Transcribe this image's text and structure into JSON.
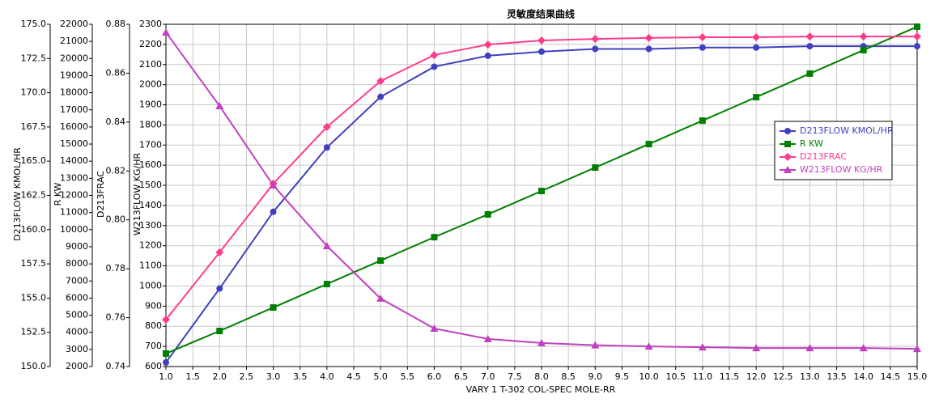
{
  "chart_data": {
    "type": "line",
    "title": "灵敏度结果曲线",
    "xlabel": "VARY   1 T-302 COL-SPEC MOLE-RR",
    "ylabel": "D213FLOW KMOL/HR",
    "y2label": "R KW",
    "y3label": "D213FRAC",
    "y4label": "W213FLOW KG/HR",
    "x": [
      1,
      2,
      3,
      4,
      5,
      6,
      7,
      8,
      9,
      10,
      11,
      12,
      13,
      14,
      15
    ],
    "xlim": [
      1,
      15
    ],
    "xticks": [
      {
        "value": 1,
        "label": "1.0"
      },
      1.5,
      {
        "value": 2,
        "label": "2.0"
      },
      2.5,
      {
        "value": 3,
        "label": "3.0"
      },
      3.5,
      {
        "value": 4,
        "label": "4.0"
      },
      4.5,
      {
        "value": 5,
        "label": "5.0"
      },
      5.5,
      {
        "value": 6,
        "label": "6.0"
      },
      6.5,
      {
        "value": 7,
        "label": "7.0"
      },
      7.5,
      {
        "value": 8,
        "label": "8.0"
      },
      8.5,
      {
        "value": 9,
        "label": "9.0"
      },
      9.5,
      {
        "value": 10,
        "label": "10.0"
      },
      10.5,
      {
        "value": 11,
        "label": "11.0"
      },
      11.5,
      {
        "value": 12,
        "label": "12.0"
      },
      12.5,
      {
        "value": 13,
        "label": "13.0"
      },
      13.5,
      {
        "value": 14,
        "label": "14.0"
      },
      14.5,
      {
        "value": 15,
        "label": "15.0"
      }
    ],
    "ylim": [
      150,
      175
    ],
    "yticks": [
      {
        "value": 150,
        "label": "150.0"
      },
      152.5,
      {
        "value": 155,
        "label": "155.0"
      },
      157.5,
      {
        "value": 160,
        "label": "160.0"
      },
      162.5,
      {
        "value": 165,
        "label": "165.0"
      },
      167.5,
      {
        "value": 170,
        "label": "170.0"
      },
      172.5,
      {
        "value": 175,
        "label": "175.0"
      }
    ],
    "y2lim": [
      2000,
      22000
    ],
    "y2ticks": [
      2000,
      3000,
      4000,
      5000,
      6000,
      7000,
      8000,
      9000,
      10000,
      11000,
      12000,
      13000,
      14000,
      15000,
      16000,
      17000,
      18000,
      19000,
      20000,
      21000,
      22000
    ],
    "y3lim": [
      0.74,
      0.88
    ],
    "y3ticks": [
      0.74,
      0.76,
      0.78,
      {
        "value": 0.8,
        "label": "0.80"
      },
      0.82,
      0.84,
      0.86,
      0.88
    ],
    "y4lim": [
      600,
      2300
    ],
    "y4ticks": [
      600,
      700,
      800,
      900,
      1000,
      1100,
      1200,
      1300,
      1400,
      1500,
      1600,
      1700,
      1800,
      1900,
      2000,
      2100,
      2200,
      2300
    ],
    "grid": true,
    "legend": "right",
    "series": [
      {
        "name": "D213FLOW KMOL/HR",
        "color": "#4040c0",
        "marker": "circle",
        "axis": "y",
        "values": [
          150.3,
          155.7,
          161.3,
          166.0,
          169.7,
          171.9,
          172.7,
          173.0,
          173.2,
          173.2,
          173.3,
          173.3,
          173.4,
          173.4,
          173.4
        ]
      },
      {
        "name": "R KW",
        "color": "#008000",
        "marker": "square",
        "axis": "y2",
        "values": [
          2760,
          4080,
          5450,
          6820,
          8190,
          9560,
          10890,
          12260,
          13630,
          15000,
          16370,
          17740,
          19120,
          20490,
          21860
        ]
      },
      {
        "name": "D213FRAC",
        "color": "#ff3c8c",
        "marker": "diamond",
        "axis": "y3",
        "values": [
          0.7592,
          0.7867,
          0.8148,
          0.838,
          0.8568,
          0.8674,
          0.8717,
          0.8734,
          0.874,
          0.8744,
          0.8747,
          0.8747,
          0.875,
          0.875,
          0.875
        ]
      },
      {
        "name": "W213FLOW KG/HR",
        "color": "#c040c0",
        "marker": "triangle",
        "axis": "y4",
        "values": [
          2260,
          1894,
          1500,
          1199,
          938,
          789,
          737,
          717,
          706,
          700,
          696,
          692,
          692,
          692,
          688
        ]
      }
    ]
  }
}
